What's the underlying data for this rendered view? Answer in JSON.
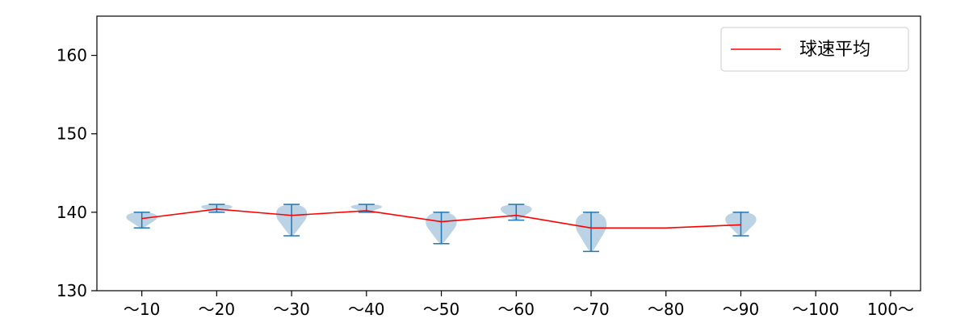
{
  "chart_data": {
    "type": "violin",
    "title": "",
    "xlabel": "",
    "ylabel": "",
    "ylim": [
      130,
      165
    ],
    "yticks": [
      130,
      140,
      150,
      160
    ],
    "categories": [
      "〜10",
      "〜20",
      "〜30",
      "〜40",
      "〜50",
      "〜60",
      "〜70",
      "〜80",
      "〜90",
      "〜100",
      "100〜"
    ],
    "series": [
      {
        "name": "球速平均",
        "color": "#ff0000",
        "mean_values": [
          139.2,
          140.4,
          139.6,
          140.2,
          138.8,
          139.6,
          138.0,
          138.0,
          138.4,
          null,
          null
        ]
      }
    ],
    "distributions": [
      {
        "category": "〜10",
        "min": 138,
        "max": 140
      },
      {
        "category": "〜20",
        "min": 140,
        "max": 141
      },
      {
        "category": "〜30",
        "min": 137,
        "max": 141
      },
      {
        "category": "〜40",
        "min": 140,
        "max": 141
      },
      {
        "category": "〜50",
        "min": 136,
        "max": 140
      },
      {
        "category": "〜60",
        "min": 139,
        "max": 141
      },
      {
        "category": "〜70",
        "min": 135,
        "max": 140
      },
      {
        "category": "〜80",
        "min": null,
        "max": null
      },
      {
        "category": "〜90",
        "min": 137,
        "max": 140
      },
      {
        "category": "〜100",
        "min": null,
        "max": null
      },
      {
        "category": "100〜",
        "min": null,
        "max": null
      }
    ],
    "legend": {
      "position": "top-right",
      "label": "球速平均"
    },
    "grid": false,
    "colors": {
      "violin_fill": "#a6c4de",
      "whisker": "#1f77b4",
      "mean_line": "#ff0000",
      "axis": "#000000"
    }
  }
}
